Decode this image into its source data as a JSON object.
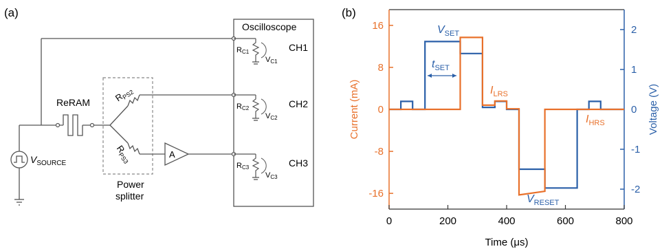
{
  "panel_a": {
    "label": "(a)",
    "oscilloscope": "Oscilloscope",
    "reram": "ReRAM",
    "source": {
      "main": "V",
      "sub": "SOURCE"
    },
    "splitter": {
      "line1": "Power",
      "line2": "splitter"
    },
    "amp": "A",
    "rps2": {
      "main": "R",
      "sub": "PS2"
    },
    "rps3": {
      "main": "R",
      "sub": "PS3"
    },
    "channels": [
      {
        "name": "CH1",
        "r_main": "R",
        "r_sub": "C1",
        "v_main": "V",
        "v_sub": "C1"
      },
      {
        "name": "CH2",
        "r_main": "R",
        "r_sub": "C2",
        "v_main": "V",
        "v_sub": "C2"
      },
      {
        "name": "CH3",
        "r_main": "R",
        "r_sub": "C3",
        "v_main": "V",
        "v_sub": "C3"
      }
    ]
  },
  "panel_b": {
    "label": "(b)",
    "annotations": {
      "vset": {
        "main": "V",
        "sub": "SET"
      },
      "tset": {
        "main": "t",
        "sub": "SET"
      },
      "ilrs": {
        "main": "I",
        "sub": "LRS"
      },
      "ihrs": {
        "main": "I",
        "sub": "HRS"
      },
      "vreset": {
        "main": "V",
        "sub": "RESET"
      }
    }
  },
  "chart_data": {
    "type": "line",
    "xlabel": "Time (μs)",
    "ylabel_left": "Current (mA)",
    "ylabel_right": "Voltage (V)",
    "xlim": [
      0,
      800
    ],
    "ylim_left": [
      -19,
      19
    ],
    "ylim_right": [
      -2.5,
      2.5
    ],
    "x_ticks": [
      0,
      200,
      400,
      600,
      800
    ],
    "y_left_ticks": [
      -16,
      -8,
      0,
      8,
      16
    ],
    "y_right_ticks": [
      -2,
      -1,
      0,
      1,
      2
    ],
    "colors": {
      "current": "#e8702a",
      "voltage": "#2a5fa8"
    },
    "series": [
      {
        "name": "Current",
        "axis": "left",
        "x": [
          0,
          242,
          242,
          318,
          318,
          360,
          360,
          400,
          400,
          442,
          442,
          530,
          530,
          800
        ],
        "y": [
          0,
          0,
          13.7,
          13.7,
          0.8,
          0.8,
          1.6,
          1.6,
          0.1,
          0.1,
          -16.3,
          -15.6,
          0,
          0
        ]
      },
      {
        "name": "Voltage",
        "axis": "right",
        "x": [
          0,
          40,
          40,
          80,
          80,
          122,
          122,
          242,
          242,
          318,
          318,
          360,
          360,
          400,
          400,
          442,
          442,
          530,
          530,
          640,
          640,
          680,
          680,
          720,
          720,
          800
        ],
        "y": [
          0,
          0,
          0.2,
          0.2,
          0,
          0,
          1.7,
          1.7,
          1.4,
          1.4,
          0.05,
          0.05,
          0.2,
          0.2,
          0,
          0,
          -1.5,
          -1.5,
          -1.97,
          -1.97,
          0,
          0,
          0.2,
          0.2,
          0,
          0
        ]
      }
    ]
  }
}
